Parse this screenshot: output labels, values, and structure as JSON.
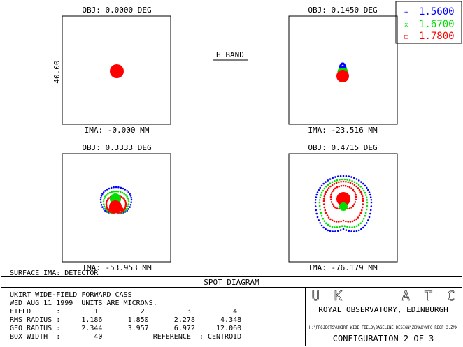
{
  "plot": {
    "band_label": "H BAND",
    "scale_label": "40.00",
    "surface_label": "SURFACE IMA: DETECTOR"
  },
  "legend": [
    {
      "marker": "+",
      "value": "1.5600",
      "color": "#0000ff"
    },
    {
      "marker": "x",
      "value": "1.6700",
      "color": "#00e000"
    },
    {
      "marker": "□",
      "value": "1.7800",
      "color": "#ff0000"
    }
  ],
  "fields": [
    {
      "obj": "OBJ: 0.0000 DEG",
      "ima": "IMA: -0.000 MM"
    },
    {
      "obj": "OBJ: 0.1450 DEG",
      "ima": "IMA: -23.516 MM"
    },
    {
      "obj": "OBJ: 0.3333 DEG",
      "ima": "IMA: -53.953 MM"
    },
    {
      "obj": "OBJ: 0.4715 DEG",
      "ima": "IMA: -76.179 MM"
    }
  ],
  "title_bar": "SPOT DIAGRAM",
  "info": {
    "lines": [
      "UKIRT WIDE-FIELD FORWARD CASS",
      "WED AUG 11 1999  UNITS ARE MICRONS.",
      "FIELD      :        1          2          3          4",
      "RMS RADIUS :     1.186      1.850      2.278      4.348",
      "GEO RADIUS :     2.344      3.957      6.972     12.060",
      "BOX WIDTH  :        40            REFERENCE  : CENTROID"
    ]
  },
  "logo": {
    "text": "UK  ATC",
    "org": "ROYAL OBSERVATORY, EDINBURGH"
  },
  "file_path": "H:\\PROJECTS\\UKIRT WIDE FIELD\\BASELINE DESIGN\\ZEMAX\\WFC REOP 3.ZMX",
  "configuration": "CONFIGURATION 2 OF 3"
}
